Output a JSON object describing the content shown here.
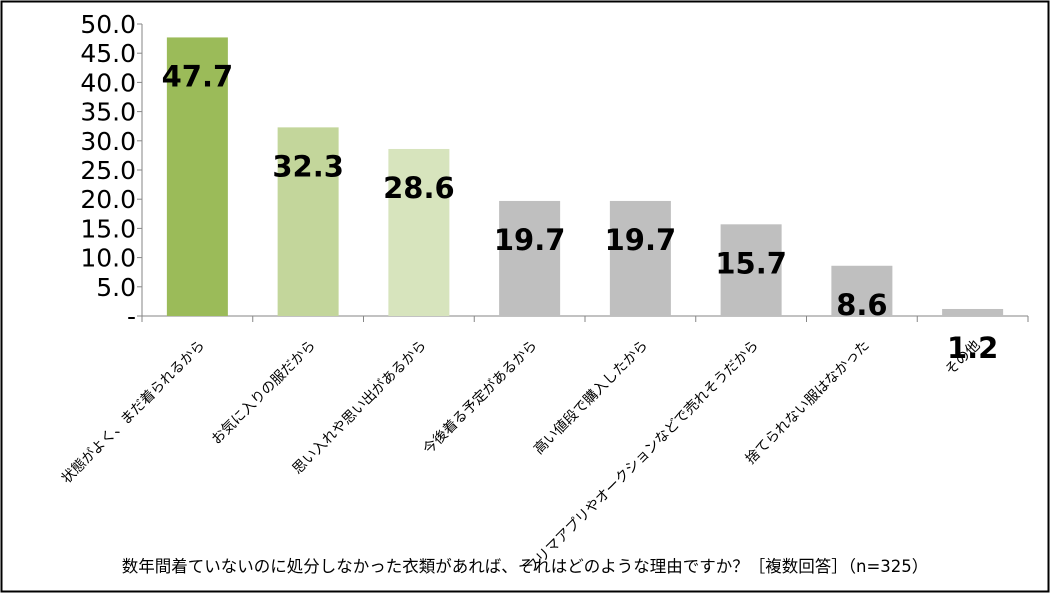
{
  "chart_data": {
    "type": "bar",
    "categories": [
      "状態がよく、まだ着られるから",
      "お気に入りの服だから",
      "思い入れや思い出があるから",
      "今後着る予定があるから",
      "高い値段で購入したから",
      "フリマアプリやオークションなどで売れそうだから",
      "捨てられない服はなかった",
      "その他"
    ],
    "values": [
      47.7,
      32.3,
      28.6,
      19.7,
      19.7,
      15.7,
      8.6,
      1.2
    ],
    "value_labels": [
      "47.7",
      "32.3",
      "28.6",
      "19.7",
      "19.7",
      "15.7",
      "8.6",
      "1.2"
    ],
    "bar_colors": [
      "#9bbb59",
      "#c3d69b",
      "#d7e4bd",
      "#bfbfbf",
      "#bfbfbf",
      "#bfbfbf",
      "#bfbfbf",
      "#bfbfbf"
    ],
    "ylim": [
      0,
      50
    ],
    "yticks": [
      "-",
      "5.0",
      "10.0",
      "15.0",
      "20.0",
      "25.0",
      "30.0",
      "35.0",
      "40.0",
      "45.0",
      "50.0"
    ],
    "ytick_values": [
      0,
      5,
      10,
      15,
      20,
      25,
      30,
      35,
      40,
      45,
      50
    ],
    "grid": false,
    "legend": "none",
    "xlabel": "数年間着ていないのに処分しなかった衣類があれば、それはどのような理由ですか？［複数回答］（n=325）",
    "ylabel": ""
  }
}
